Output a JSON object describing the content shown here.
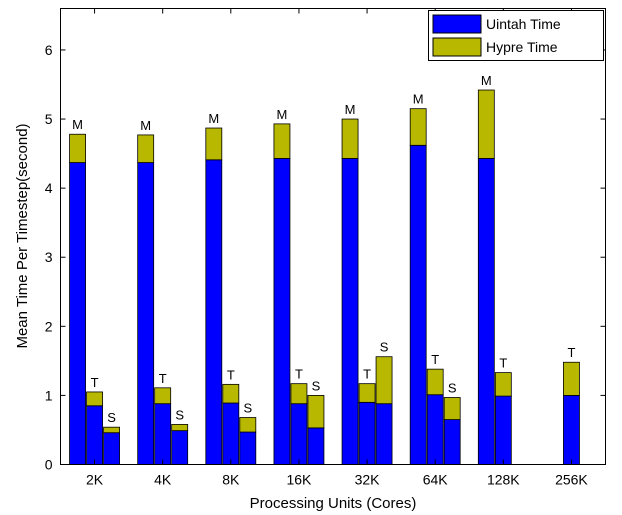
{
  "chart_data": {
    "type": "bar",
    "stacked": true,
    "title": "",
    "xlabel": "Processing Units (Cores)",
    "ylabel": "Mean Time Per Timestep(second)",
    "ylim": [
      0,
      6.6
    ],
    "yticks": [
      0,
      1,
      2,
      3,
      4,
      5,
      6
    ],
    "categories": [
      "2K",
      "4K",
      "8K",
      "16K",
      "32K",
      "64K",
      "128K",
      "256K"
    ],
    "legend": {
      "placement": "top-right",
      "entries": [
        {
          "name": "Uintah Time",
          "color": "#0000ff"
        },
        {
          "name": "Hypre Time",
          "color": "#b8b800"
        }
      ]
    },
    "grid": false,
    "groups": [
      {
        "category": "2K",
        "bars": [
          {
            "label": "M",
            "uintah": 4.37,
            "hypre": 0.41
          },
          {
            "label": "T",
            "uintah": 0.85,
            "hypre": 0.2
          },
          {
            "label": "S",
            "uintah": 0.46,
            "hypre": 0.08
          }
        ]
      },
      {
        "category": "4K",
        "bars": [
          {
            "label": "M",
            "uintah": 4.37,
            "hypre": 0.4
          },
          {
            "label": "T",
            "uintah": 0.88,
            "hypre": 0.23
          },
          {
            "label": "S",
            "uintah": 0.49,
            "hypre": 0.09
          }
        ]
      },
      {
        "category": "8K",
        "bars": [
          {
            "label": "M",
            "uintah": 4.41,
            "hypre": 0.46
          },
          {
            "label": "T",
            "uintah": 0.89,
            "hypre": 0.27
          },
          {
            "label": "S",
            "uintah": 0.47,
            "hypre": 0.21
          }
        ]
      },
      {
        "category": "16K",
        "bars": [
          {
            "label": "M",
            "uintah": 4.43,
            "hypre": 0.5
          },
          {
            "label": "T",
            "uintah": 0.88,
            "hypre": 0.29
          },
          {
            "label": "S",
            "uintah": 0.53,
            "hypre": 0.47
          }
        ]
      },
      {
        "category": "32K",
        "bars": [
          {
            "label": "M",
            "uintah": 4.43,
            "hypre": 0.57
          },
          {
            "label": "T",
            "uintah": 0.9,
            "hypre": 0.27
          },
          {
            "label": "S",
            "uintah": 0.88,
            "hypre": 0.68
          }
        ]
      },
      {
        "category": "64K",
        "bars": [
          {
            "label": "M",
            "uintah": 4.62,
            "hypre": 0.53
          },
          {
            "label": "T",
            "uintah": 1.01,
            "hypre": 0.37
          },
          {
            "label": "S",
            "uintah": 0.65,
            "hypre": 0.32
          }
        ]
      },
      {
        "category": "128K",
        "bars": [
          {
            "label": "M",
            "uintah": 4.43,
            "hypre": 0.99
          },
          {
            "label": "T",
            "uintah": 0.99,
            "hypre": 0.34
          }
        ]
      },
      {
        "category": "256K",
        "bars": [
          {
            "label": "T",
            "uintah": 1.0,
            "hypre": 0.48
          }
        ]
      }
    ]
  }
}
